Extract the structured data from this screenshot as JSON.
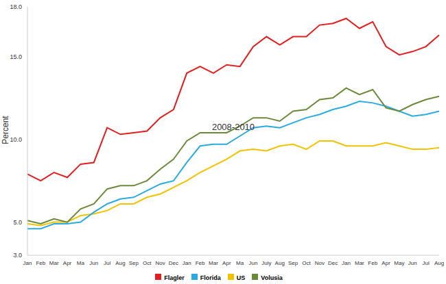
{
  "chart_data": {
    "type": "line",
    "x_label": "2008-2010",
    "y_label": "Percent",
    "categories": [
      "Jan",
      "Feb",
      "Mar",
      "Apr",
      "Ma",
      "Jun",
      "Jul",
      "Aug",
      "Sep",
      "Oct",
      "Nov",
      "Dec",
      "Jan",
      "Feb",
      "Mar",
      "Apr",
      "Ma",
      "Jun",
      "July",
      "Aug",
      "Sep",
      "Oct",
      "Nov",
      "Dec",
      "Jan",
      "Mar",
      "Feb",
      "Apr",
      "May",
      "Jun",
      "Jul",
      "Aug"
    ],
    "series": [
      {
        "name": "US",
        "color": "#f2c200",
        "values": [
          4.9,
          4.8,
          5.0,
          5.0,
          5.4,
          5.5,
          5.7,
          6.1,
          6.1,
          6.5,
          6.7,
          7.1,
          7.5,
          8.0,
          8.4,
          8.8,
          9.3,
          9.4,
          9.3,
          9.6,
          9.7,
          9.4,
          9.9,
          9.9,
          9.6,
          9.6,
          9.6,
          9.8,
          9.6,
          9.4,
          9.4,
          9.5
        ]
      },
      {
        "name": "Florida",
        "color": "#29abe2",
        "values": [
          4.6,
          4.6,
          4.9,
          4.9,
          5.0,
          5.6,
          6.1,
          6.4,
          6.5,
          6.9,
          7.3,
          7.5,
          8.6,
          9.6,
          9.7,
          9.7,
          10.2,
          10.7,
          10.8,
          10.7,
          11.0,
          11.3,
          11.5,
          11.8,
          12.0,
          12.3,
          12.2,
          12.0,
          11.7,
          11.4,
          11.5,
          11.7
        ]
      },
      {
        "name": "Flagler",
        "color": "#e41e1e",
        "values": [
          7.9,
          7.5,
          8.0,
          7.7,
          8.5,
          8.6,
          10.7,
          10.3,
          10.4,
          10.5,
          11.3,
          11.8,
          14.0,
          14.4,
          14.0,
          14.5,
          14.4,
          15.6,
          16.2,
          15.7,
          16.2,
          16.2,
          16.9,
          17.0,
          17.3,
          16.7,
          17.1,
          15.6,
          15.1,
          15.3,
          15.6,
          16.3
        ]
      },
      {
        "name": "Volusia",
        "color": "#6a8a3a",
        "values": [
          5.1,
          4.9,
          5.2,
          5.0,
          5.8,
          6.1,
          7.0,
          7.2,
          7.2,
          7.5,
          8.2,
          8.8,
          9.9,
          10.4,
          10.4,
          10.4,
          10.8,
          11.3,
          11.3,
          11.1,
          11.7,
          11.8,
          12.4,
          12.5,
          13.1,
          12.7,
          13.0,
          11.9,
          11.7,
          12.1,
          12.4,
          12.6
        ]
      }
    ],
    "ylim": [
      3,
      18
    ],
    "yticks": [
      {
        "value": 3,
        "label": "3.0"
      },
      {
        "value": 5,
        "label": "5.0"
      },
      {
        "value": 10,
        "label": "10.0"
      },
      {
        "value": 15,
        "label": "15.0"
      },
      {
        "value": 18,
        "label": "18.0"
      }
    ],
    "grid": false,
    "legend": "bottom"
  }
}
